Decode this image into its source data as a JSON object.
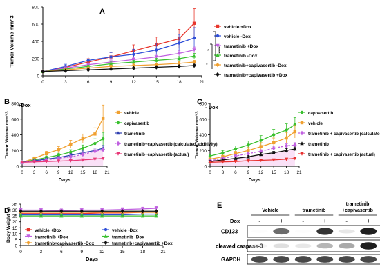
{
  "chart_data": [
    {
      "panel": "A",
      "type": "line",
      "xlabel": "",
      "ylabel": "Tumor Volume mm^3",
      "x": [
        0,
        3,
        6,
        9,
        12,
        15,
        18,
        21
      ],
      "xlim": [
        0,
        21
      ],
      "ylim": [
        0,
        800
      ],
      "yticks": [
        0,
        200,
        400,
        600,
        800
      ],
      "xticks": [
        0,
        3,
        6,
        9,
        12,
        15,
        18,
        21
      ],
      "legend_position": "right",
      "significance": [
        "****",
        "*",
        "*"
      ],
      "series": [
        {
          "name": "vehicle +Dox",
          "color": "#e8362c",
          "marker": "square",
          "x": [
            0,
            3,
            6,
            9,
            12,
            15,
            18,
            20
          ],
          "values": [
            50,
            100,
            160,
            220,
            290,
            360,
            430,
            610
          ],
          "err": [
            10,
            20,
            40,
            50,
            70,
            90,
            110,
            170
          ]
        },
        {
          "name": "vehicle -Dox",
          "color": "#2f4fd8",
          "marker": "circle",
          "x": [
            0,
            3,
            6,
            9,
            12,
            15,
            18,
            20
          ],
          "values": [
            50,
            110,
            180,
            220,
            250,
            300,
            380,
            440
          ],
          "err": [
            10,
            25,
            40,
            50,
            60,
            80,
            100,
            120
          ]
        },
        {
          "name": "trametinib +Dox",
          "color": "#c060e0",
          "marker": "triangle-down",
          "x": [
            0,
            3,
            6,
            9,
            12,
            15,
            18,
            20
          ],
          "values": [
            50,
            90,
            130,
            160,
            190,
            220,
            260,
            300
          ],
          "err": [
            5,
            15,
            20,
            25,
            25,
            30,
            30,
            35
          ]
        },
        {
          "name": "trametinib -Dox",
          "color": "#39c02e",
          "marker": "triangle-up",
          "x": [
            0,
            3,
            6,
            9,
            12,
            15,
            18,
            20
          ],
          "values": [
            50,
            80,
            110,
            140,
            160,
            180,
            200,
            230
          ],
          "err": [
            5,
            10,
            15,
            20,
            20,
            25,
            25,
            30
          ]
        },
        {
          "name": "trametinib+capivasertib -Dox",
          "color": "#f0a030",
          "marker": "diamond",
          "x": [
            0,
            3,
            6,
            9,
            12,
            15,
            18,
            20
          ],
          "values": [
            50,
            70,
            90,
            110,
            120,
            130,
            145,
            160
          ],
          "err": [
            5,
            10,
            10,
            15,
            15,
            15,
            20,
            20
          ]
        },
        {
          "name": "trametinib+capivasertib +Dox",
          "color": "#111111",
          "marker": "diamond",
          "x": [
            0,
            3,
            6,
            9,
            12,
            15,
            18,
            20
          ],
          "values": [
            50,
            60,
            70,
            80,
            90,
            100,
            110,
            120
          ],
          "err": [
            5,
            8,
            10,
            10,
            10,
            12,
            12,
            15
          ]
        }
      ]
    },
    {
      "panel": "B",
      "type": "line",
      "title": "+Dox",
      "xlabel": "Days",
      "ylabel": "Tumor Volume mm^3",
      "xlim": [
        0,
        21
      ],
      "ylim": [
        0,
        800
      ],
      "yticks": [
        0,
        200,
        400,
        600,
        800
      ],
      "xticks": [
        0,
        3,
        6,
        9,
        12,
        15,
        18,
        21
      ],
      "legend_position": "right",
      "series": [
        {
          "name": "vehicle",
          "color": "#f0a030",
          "marker": "square",
          "x": [
            0,
            3,
            6,
            9,
            12,
            15,
            18,
            20
          ],
          "values": [
            50,
            100,
            160,
            210,
            280,
            350,
            410,
            610
          ],
          "err": [
            10,
            20,
            30,
            40,
            50,
            60,
            80,
            170
          ]
        },
        {
          "name": "capivasertib",
          "color": "#39c02e",
          "marker": "circle",
          "x": [
            0,
            3,
            6,
            9,
            12,
            15,
            18,
            20
          ],
          "values": [
            50,
            80,
            110,
            140,
            180,
            230,
            290,
            350
          ],
          "err": [
            10,
            15,
            20,
            25,
            30,
            40,
            60,
            80
          ]
        },
        {
          "name": "trametinib",
          "color": "#2f3fb0",
          "marker": "triangle-up",
          "x": [
            0,
            3,
            6,
            9,
            12,
            15,
            18,
            20
          ],
          "values": [
            50,
            70,
            90,
            110,
            140,
            170,
            200,
            230
          ],
          "err": [
            5,
            10,
            15,
            15,
            20,
            25,
            30,
            35
          ]
        },
        {
          "name": "trametinib+capivasertib (calculated additivity)",
          "color": "#c060e0",
          "marker": "diamond",
          "dashed": true,
          "x": [
            0,
            3,
            6,
            9,
            12,
            15,
            18,
            20
          ],
          "values": [
            50,
            60,
            80,
            100,
            120,
            150,
            190,
            210
          ],
          "err": [
            5,
            8,
            10,
            12,
            15,
            18,
            22,
            25
          ]
        },
        {
          "name": "trametinib+capivasertib (actual)",
          "color": "#e83878",
          "marker": "triangle-down",
          "x": [
            0,
            3,
            6,
            9,
            12,
            15,
            18,
            20
          ],
          "values": [
            50,
            55,
            60,
            65,
            70,
            80,
            90,
            100
          ],
          "err": [
            5,
            5,
            8,
            8,
            10,
            10,
            12,
            12
          ]
        }
      ]
    },
    {
      "panel": "C",
      "type": "line",
      "title": "- Dox",
      "xlabel": "Days",
      "ylabel": "Tumor Volume mm^3",
      "xlim": [
        0,
        21
      ],
      "ylim": [
        0,
        800
      ],
      "yticks": [
        0,
        200,
        400,
        600,
        800
      ],
      "xticks": [
        0,
        3,
        6,
        9,
        12,
        15,
        18,
        21
      ],
      "legend_position": "right",
      "series": [
        {
          "name": "capivasertib",
          "color": "#39c02e",
          "marker": "circle",
          "x": [
            0,
            3,
            6,
            9,
            12,
            15,
            18,
            20
          ],
          "values": [
            130,
            170,
            220,
            270,
            330,
            400,
            460,
            530
          ],
          "err": [
            20,
            30,
            40,
            50,
            60,
            70,
            80,
            90
          ]
        },
        {
          "name": "vehicle",
          "color": "#f0a030",
          "marker": "square",
          "x": [
            0,
            3,
            6,
            9,
            12,
            15,
            18,
            20
          ],
          "values": [
            90,
            120,
            160,
            200,
            250,
            300,
            360,
            440
          ],
          "err": [
            15,
            20,
            30,
            40,
            50,
            60,
            70,
            80
          ]
        },
        {
          "name": "trametinib + capivasertib (calculated additivity)",
          "color": "#c060e0",
          "marker": "diamond",
          "dashed": true,
          "x": [
            0,
            3,
            6,
            9,
            12,
            15,
            18,
            20
          ],
          "values": [
            70,
            100,
            130,
            160,
            190,
            230,
            260,
            270
          ],
          "err": [
            10,
            15,
            15,
            20,
            20,
            25,
            25,
            30
          ]
        },
        {
          "name": "trametinib",
          "color": "#111111",
          "marker": "triangle-up",
          "x": [
            0,
            3,
            6,
            9,
            12,
            15,
            18,
            20
          ],
          "values": [
            60,
            80,
            100,
            120,
            150,
            170,
            200,
            220
          ],
          "err": [
            10,
            10,
            15,
            15,
            20,
            20,
            25,
            25
          ]
        },
        {
          "name": "trametinib + capivasertib (actual)",
          "color": "#e83030",
          "marker": "triangle-down",
          "x": [
            0,
            3,
            6,
            9,
            12,
            15,
            18,
            20
          ],
          "values": [
            50,
            55,
            60,
            70,
            75,
            80,
            90,
            100
          ],
          "err": [
            5,
            5,
            8,
            8,
            10,
            10,
            10,
            12
          ]
        }
      ]
    },
    {
      "panel": "D",
      "type": "line",
      "xlabel": "Days",
      "ylabel": "Body Weight (g)",
      "xlim": [
        0,
        21
      ],
      "ylim": [
        0,
        35
      ],
      "yticks": [
        0,
        5,
        10,
        15,
        20,
        25,
        30,
        35
      ],
      "xticks": [
        0,
        3,
        6,
        9,
        12,
        15,
        18,
        21
      ],
      "legend_position": "inside-bottom",
      "series": [
        {
          "name": "vehicle +Dox",
          "color": "#e8362c",
          "marker": "square",
          "x": [
            0,
            3,
            6,
            9,
            12,
            15,
            18,
            20
          ],
          "values": [
            27,
            27,
            27,
            27,
            27.5,
            27.5,
            28,
            28
          ],
          "err": [
            1,
            1,
            1,
            1,
            1,
            1,
            1,
            1
          ]
        },
        {
          "name": "vehicle -Dox",
          "color": "#2f4fd8",
          "marker": "circle",
          "x": [
            0,
            3,
            6,
            9,
            12,
            15,
            18,
            20
          ],
          "values": [
            26,
            26,
            26,
            26,
            26,
            26,
            26.5,
            26.5
          ],
          "err": [
            1,
            1,
            1,
            1,
            1,
            1,
            1,
            1
          ]
        },
        {
          "name": "trametinib +Dox",
          "color": "#c060e0",
          "marker": "triangle-down",
          "x": [
            0,
            3,
            6,
            9,
            12,
            15,
            18,
            20
          ],
          "values": [
            30,
            30,
            29.5,
            30,
            30,
            30.5,
            31,
            31.5
          ],
          "err": [
            1.5,
            1.5,
            1.5,
            1.5,
            1.5,
            1.5,
            1.5,
            1.5
          ]
        },
        {
          "name": "trametinib -Dox",
          "color": "#39c02e",
          "marker": "triangle-up",
          "x": [
            0,
            3,
            6,
            9,
            12,
            15,
            18,
            20
          ],
          "values": [
            25,
            25,
            25,
            25,
            25,
            25,
            25,
            25
          ],
          "err": [
            1,
            1,
            1,
            1,
            1,
            1,
            1,
            1
          ]
        },
        {
          "name": "trametinb+capivasertib -Dox",
          "color": "#f0a030",
          "marker": "diamond",
          "x": [
            0,
            3,
            6,
            9,
            12,
            15,
            18,
            20
          ],
          "values": [
            28,
            28,
            28,
            28,
            28,
            28,
            28,
            28
          ],
          "err": [
            1,
            1,
            1,
            1,
            1,
            1,
            1,
            1
          ]
        },
        {
          "name": "trametinb+capivasertib +Dox",
          "color": "#111111",
          "marker": "diamond",
          "x": [
            0,
            3,
            6,
            9,
            12,
            15,
            18,
            20
          ],
          "values": [
            29,
            29,
            29,
            29,
            29,
            29,
            29,
            29
          ],
          "err": [
            1,
            1,
            1,
            1,
            1,
            1,
            1,
            1
          ]
        }
      ]
    }
  ],
  "panel_labels": [
    "A",
    "B",
    "C",
    "D",
    "E"
  ],
  "western": {
    "groups": [
      "Vehicle",
      "trametinib",
      "trametinib +capivasertib"
    ],
    "dox_label": "Dox",
    "dox_states": [
      "-",
      "+",
      "-",
      "+",
      "-",
      "+"
    ],
    "rows": [
      {
        "label": "CD133",
        "intensity": [
          0.05,
          0.75,
          0.05,
          0.9,
          0.25,
          0.95
        ]
      },
      {
        "label": "cleaved caspase-3",
        "intensity": [
          0.15,
          0.3,
          0.25,
          0.5,
          0.55,
          0.95
        ]
      },
      {
        "label": "GAPDH",
        "intensity": [
          0.85,
          0.85,
          0.85,
          0.85,
          0.85,
          0.85
        ]
      }
    ]
  }
}
